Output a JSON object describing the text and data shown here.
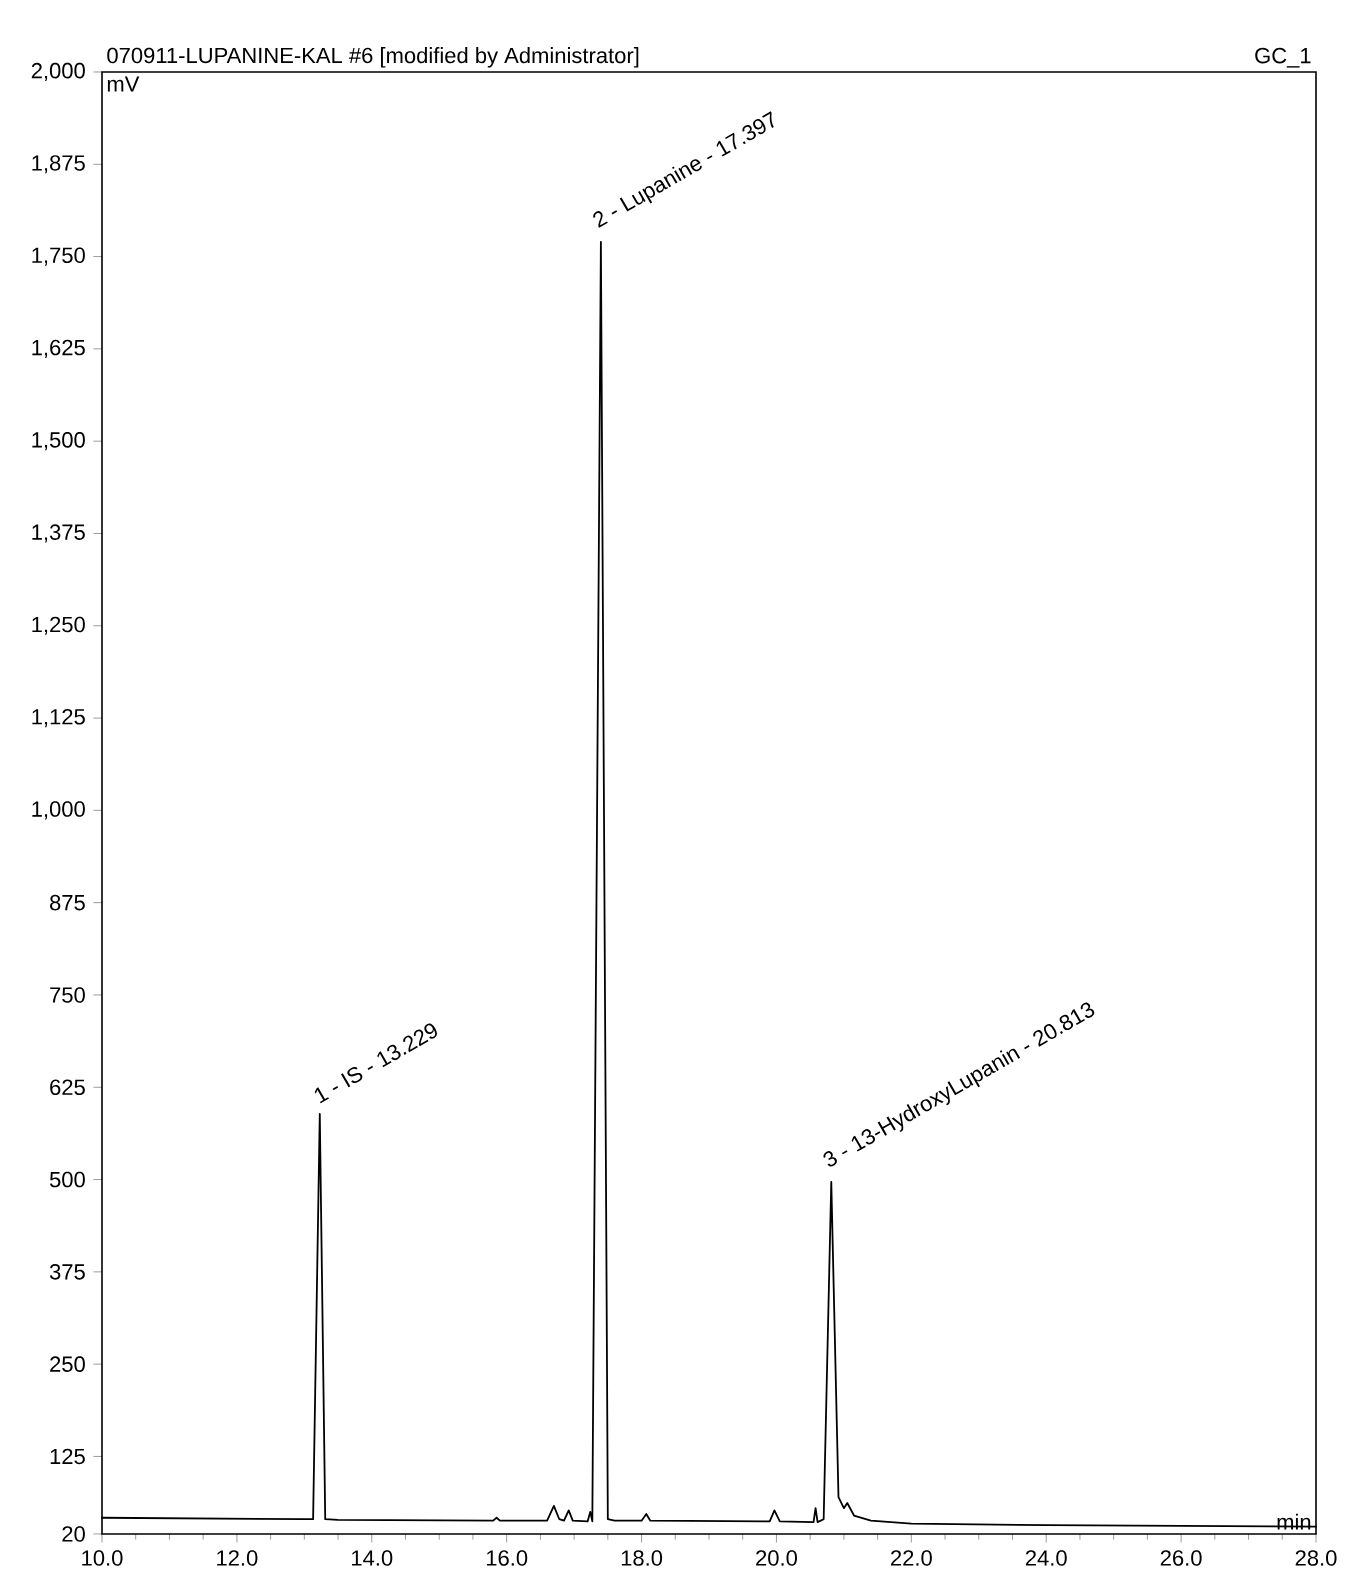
{
  "chart_data": {
    "type": "line",
    "title": "070911-LUPANINE-KAL #6 [modified by Administrator]",
    "xlabel": "min",
    "ylabel": "mV",
    "annotations": [
      "GC_1",
      {
        "text": "1 - IS - 13.229",
        "x": 13.229,
        "y": 589
      },
      {
        "text": "2 - Lupanine - 17.397",
        "x": 17.397,
        "y": 1770
      },
      {
        "text": "3 - 13-HydroxyLupanin - 20.813",
        "x": 20.813,
        "y": 497
      }
    ],
    "x": [
      10,
      13.0,
      13.13,
      13.229,
      13.31,
      13.5,
      15.8,
      15.85,
      15.9,
      16.6,
      16.7,
      16.78,
      16.85,
      16.92,
      16.98,
      17.2,
      17.24,
      17.27,
      17.397,
      17.5,
      17.6,
      18.0,
      18.07,
      18.13,
      19.9,
      19.97,
      20.05,
      20.55,
      20.58,
      20.61,
      20.7,
      20.813,
      20.92,
      21.0,
      21.05,
      21.15,
      21.4,
      22,
      24,
      26,
      28
    ],
    "series": [
      {
        "color": "#000000",
        "values": [
          42,
          40,
          40,
          589,
          40,
          39,
          38,
          42,
          38,
          38,
          58,
          40,
          38,
          52,
          38,
          37,
          50,
          37,
          1770,
          40,
          38,
          38,
          47,
          38,
          37,
          52,
          37,
          36,
          55,
          36,
          40,
          497,
          70,
          55,
          62,
          45,
          38,
          34,
          32,
          31,
          30
        ]
      }
    ],
    "xlim": [
      10,
      28
    ],
    "ylim": [
      20,
      2000
    ],
    "xticks": [
      {
        "value": 10,
        "label": "10.0"
      },
      {
        "value": 12,
        "label": "12.0"
      },
      {
        "value": 14,
        "label": "14.0"
      },
      {
        "value": 16,
        "label": "16.0"
      },
      {
        "value": 18,
        "label": "18.0"
      },
      {
        "value": 20,
        "label": "20.0"
      },
      {
        "value": 22,
        "label": "22.0"
      },
      {
        "value": 24,
        "label": "24.0"
      },
      {
        "value": 26,
        "label": "26.0"
      },
      {
        "value": 28,
        "label": "28.0"
      }
    ],
    "yticks": [
      20,
      125,
      250,
      375,
      500,
      625,
      750,
      875,
      {
        "value": 1000,
        "label": "1,000"
      },
      {
        "value": 1125,
        "label": "1,125"
      },
      {
        "value": 1250,
        "label": "1,250"
      },
      {
        "value": 1375,
        "label": "1,375"
      },
      {
        "value": 1500,
        "label": "1,500"
      },
      {
        "value": 1625,
        "label": "1,625"
      },
      {
        "value": 1750,
        "label": "1,750"
      },
      {
        "value": 1875,
        "label": "1,875"
      },
      {
        "value": 2000,
        "label": "2,000"
      }
    ],
    "grid": false,
    "marker": "none",
    "line_style": "solid"
  }
}
